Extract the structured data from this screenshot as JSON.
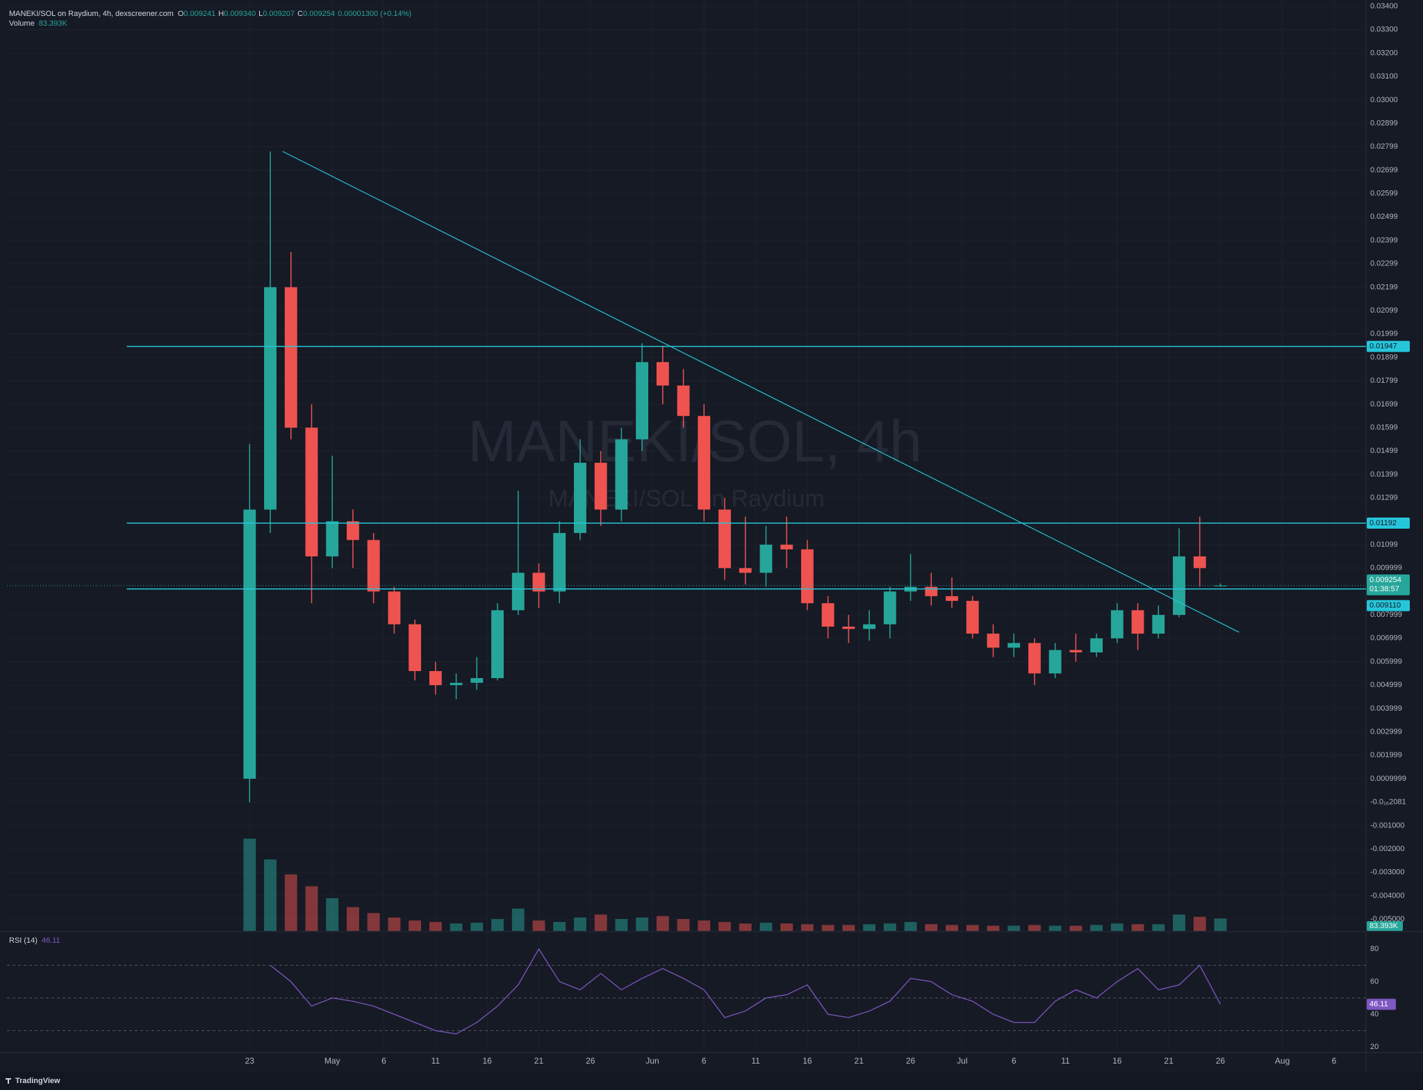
{
  "header": {
    "symbol": "MANEKI/SOL on Raydium, 4h, dexscreener.com",
    "o_label": "O",
    "o": "0.009241",
    "h_label": "H",
    "h": "0.009340",
    "l_label": "L",
    "l": "0.009207",
    "c_label": "C",
    "c": "0.009254",
    "change": "0.00001300 (+0.14%)",
    "volume_label": "Volume",
    "volume_value": "83.393K"
  },
  "watermark": {
    "title": "MANEKI/SOL, 4h",
    "subtitle": "MANEKI/SOL on Raydium"
  },
  "footer": {
    "brand": "TradingView"
  },
  "chart_data": [
    {
      "type": "candlestick",
      "up_color": "#26a69a",
      "down_color": "#ef5350",
      "grid": true,
      "x": [
        0,
        2,
        4,
        6,
        8,
        10,
        12,
        14,
        16,
        18,
        20,
        22,
        24,
        26,
        28,
        30,
        32,
        34,
        36,
        38,
        40,
        42,
        44,
        46,
        48,
        50,
        52,
        54,
        56,
        58,
        60,
        62,
        64,
        66,
        68,
        70,
        72,
        74,
        76,
        78,
        80,
        82,
        84,
        86,
        88,
        90,
        92,
        94
      ],
      "open": [
        0.001,
        0.0125,
        0.022,
        0.016,
        0.0105,
        0.012,
        0.0112,
        0.009,
        0.0076,
        0.0056,
        0.005,
        0.0051,
        0.0053,
        0.0082,
        0.0098,
        0.009,
        0.0115,
        0.0145,
        0.0125,
        0.0155,
        0.0188,
        0.0178,
        0.0165,
        0.0125,
        0.01,
        0.0098,
        0.011,
        0.0108,
        0.0085,
        0.0075,
        0.0074,
        0.0076,
        0.009,
        0.0092,
        0.0088,
        0.0086,
        0.0072,
        0.0066,
        0.0068,
        0.0055,
        0.0065,
        0.0064,
        0.007,
        0.0082,
        0.0072,
        0.008,
        0.0105,
        0.009241
      ],
      "high": [
        0.0153,
        0.0278,
        0.0235,
        0.017,
        0.0148,
        0.0125,
        0.0115,
        0.0092,
        0.0078,
        0.006,
        0.0055,
        0.0062,
        0.0085,
        0.0133,
        0.0102,
        0.012,
        0.0155,
        0.015,
        0.016,
        0.0196,
        0.0195,
        0.0185,
        0.017,
        0.013,
        0.0122,
        0.0118,
        0.0122,
        0.0112,
        0.0088,
        0.008,
        0.0082,
        0.0092,
        0.0106,
        0.0098,
        0.0096,
        0.0088,
        0.0076,
        0.0072,
        0.007,
        0.0068,
        0.0072,
        0.0072,
        0.0085,
        0.0085,
        0.0084,
        0.0117,
        0.0122,
        0.00934
      ],
      "low": [
        0.0,
        0.0115,
        0.0155,
        0.0085,
        0.01,
        0.01,
        0.0085,
        0.0072,
        0.0052,
        0.0046,
        0.0044,
        0.0048,
        0.0052,
        0.008,
        0.0083,
        0.0085,
        0.0112,
        0.0118,
        0.012,
        0.015,
        0.017,
        0.016,
        0.012,
        0.0095,
        0.0093,
        0.0092,
        0.01,
        0.0082,
        0.007,
        0.0068,
        0.0069,
        0.007,
        0.0086,
        0.0084,
        0.0083,
        0.007,
        0.0062,
        0.0062,
        0.005,
        0.0053,
        0.006,
        0.0062,
        0.0068,
        0.0065,
        0.007,
        0.0079,
        0.0092,
        0.009207
      ],
      "close": [
        0.0125,
        0.022,
        0.016,
        0.0105,
        0.012,
        0.0112,
        0.009,
        0.0076,
        0.0056,
        0.005,
        0.0051,
        0.0053,
        0.0082,
        0.0098,
        0.009,
        0.0115,
        0.0145,
        0.0125,
        0.0155,
        0.0188,
        0.0178,
        0.0165,
        0.0125,
        0.01,
        0.0098,
        0.011,
        0.0108,
        0.0085,
        0.0075,
        0.0074,
        0.0076,
        0.009,
        0.0092,
        0.0088,
        0.0086,
        0.0072,
        0.0066,
        0.0068,
        0.0055,
        0.0065,
        0.0064,
        0.007,
        0.0082,
        0.0072,
        0.008,
        0.0105,
        0.01,
        0.009254
      ],
      "xlim": [
        -23.5,
        108.1
      ],
      "xticks": [
        {
          "value": 0,
          "label": "23"
        },
        {
          "value": 8,
          "label": "May"
        },
        {
          "value": 13,
          "label": "6"
        },
        {
          "value": 18,
          "label": "11"
        },
        {
          "value": 23,
          "label": "16"
        },
        {
          "value": 28,
          "label": "21"
        },
        {
          "value": 33,
          "label": "26"
        },
        {
          "value": 39,
          "label": "Jun"
        },
        {
          "value": 44,
          "label": "6"
        },
        {
          "value": 49,
          "label": "11"
        },
        {
          "value": 54,
          "label": "16"
        },
        {
          "value": 59,
          "label": "21"
        },
        {
          "value": 64,
          "label": "26"
        },
        {
          "value": 69,
          "label": "Jul"
        },
        {
          "value": 74,
          "label": "6"
        },
        {
          "value": 79,
          "label": "11"
        },
        {
          "value": 84,
          "label": "16"
        },
        {
          "value": 89,
          "label": "21"
        },
        {
          "value": 94,
          "label": "26"
        },
        {
          "value": 100,
          "label": "Aug"
        },
        {
          "value": 105,
          "label": "6"
        }
      ],
      "ylim": [
        -0.0055,
        0.03427
      ],
      "yticks": [
        {
          "value": 0.034,
          "label": "0.03400"
        },
        {
          "value": 0.033,
          "label": "0.03300"
        },
        {
          "value": 0.032,
          "label": "0.03200"
        },
        {
          "value": 0.031,
          "label": "0.03100"
        },
        {
          "value": 0.03,
          "label": "0.03000"
        },
        {
          "value": 0.029,
          "label": "0.02899"
        },
        {
          "value": 0.028,
          "label": "0.02799"
        },
        {
          "value": 0.027,
          "label": "0.02699"
        },
        {
          "value": 0.026,
          "label": "0.02599"
        },
        {
          "value": 0.025,
          "label": "0.02499"
        },
        {
          "value": 0.024,
          "label": "0.02399"
        },
        {
          "value": 0.023,
          "label": "0.02299"
        },
        {
          "value": 0.022,
          "label": "0.02199"
        },
        {
          "value": 0.021,
          "label": "0.02099"
        },
        {
          "value": 0.02,
          "label": "0.01999"
        },
        {
          "value": 0.019,
          "label": "0.01899"
        },
        {
          "value": 0.018,
          "label": "0.01799"
        },
        {
          "value": 0.017,
          "label": "0.01699"
        },
        {
          "value": 0.016,
          "label": "0.01599"
        },
        {
          "value": 0.015,
          "label": "0.01499"
        },
        {
          "value": 0.014,
          "label": "0.01399"
        },
        {
          "value": 0.013,
          "label": "0.01299"
        },
        {
          "value": 0.011,
          "label": "0.01099"
        },
        {
          "value": 0.01,
          "label": "0.009999"
        },
        {
          "value": 0.008,
          "label": "0.007999"
        },
        {
          "value": 0.007,
          "label": "0.006999"
        },
        {
          "value": 0.006,
          "label": "0.005999"
        },
        {
          "value": 0.005,
          "label": "0.004999"
        },
        {
          "value": 0.004,
          "label": "0.003999"
        },
        {
          "value": 0.003,
          "label": "0.002999"
        },
        {
          "value": 0.002,
          "label": "0.001999"
        },
        {
          "value": 0.001,
          "label": "0.0009999"
        },
        {
          "value": 0,
          "label": "-0.0₁₆2081"
        },
        {
          "value": -0.001,
          "label": "-0.001000"
        },
        {
          "value": -0.002,
          "label": "-0.002000"
        },
        {
          "value": -0.003,
          "label": "-0.003000"
        },
        {
          "value": -0.004,
          "label": "-0.004000"
        },
        {
          "value": -0.005,
          "label": "-0.005000"
        }
      ],
      "hlines": [
        {
          "value": 0.01947,
          "label": "0.01947",
          "from_x": -11.9,
          "color": "#26c6da"
        },
        {
          "value": 0.01192,
          "label": "0.01192",
          "from_x": -11.9,
          "color": "#26c6da"
        },
        {
          "value": 0.00911,
          "label": "0.009110",
          "from_x": -11.9,
          "color": "#26c6da"
        }
      ],
      "trendline": {
        "x": [
          3.2,
          95.8
        ],
        "y": [
          0.0278,
          0.00726
        ],
        "color": "#26c6da"
      },
      "last_price": {
        "value": 0.009254,
        "label": "0.009254",
        "countdown": "01:38:57",
        "color": "#26a69a"
      }
    },
    {
      "type": "bar",
      "ylim": [
        0,
        700
      ],
      "values": [
        620,
        480,
        380,
        300,
        220,
        160,
        120,
        90,
        70,
        60,
        50,
        55,
        80,
        150,
        70,
        60,
        90,
        110,
        80,
        90,
        100,
        80,
        70,
        60,
        50,
        55,
        50,
        45,
        40,
        40,
        45,
        50,
        60,
        45,
        40,
        40,
        35,
        35,
        40,
        35,
        35,
        40,
        50,
        45,
        45,
        110,
        95,
        83.393
      ],
      "badge": {
        "value": 83.393,
        "label": "83.393K",
        "color": "#26a69a"
      }
    },
    {
      "type": "line",
      "name": "RSI (14)",
      "color": "#7e57c2",
      "ylim": [
        16.6,
        89.8
      ],
      "yticks": [
        20,
        40,
        60,
        80
      ],
      "bands": [
        30,
        50,
        70
      ],
      "values": [
        null,
        70,
        60,
        45,
        50,
        48,
        45,
        40,
        35,
        30,
        28,
        35,
        45,
        58,
        80,
        60,
        55,
        65,
        55,
        62,
        68,
        62,
        55,
        38,
        42,
        50,
        52,
        58,
        40,
        38,
        42,
        48,
        62,
        60,
        52,
        48,
        40,
        35,
        35,
        48,
        55,
        50,
        60,
        68,
        55,
        58,
        70,
        46.11
      ],
      "badge": {
        "value": 46.11,
        "label": "46.11",
        "color": "#7e57c2"
      }
    }
  ]
}
